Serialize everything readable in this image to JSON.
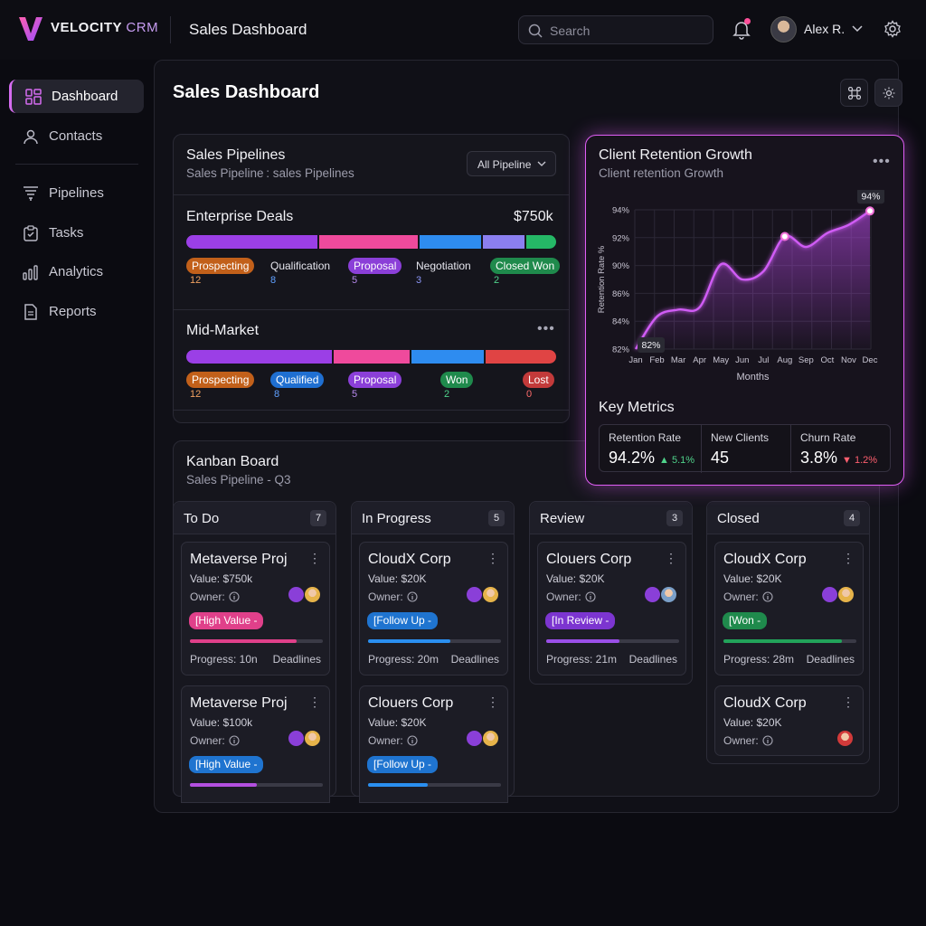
{
  "app": {
    "brand_main": "VELOCITY",
    "brand_accent": "CRM",
    "page_title": "Sales Dashboard"
  },
  "search": {
    "placeholder": "Search"
  },
  "user": {
    "name": "Alex R."
  },
  "sidebar": {
    "items": [
      {
        "label": "Dashboard",
        "icon": "dashboard-icon",
        "active": true
      },
      {
        "label": "Contacts",
        "icon": "user-icon"
      },
      {
        "label": "Pipelines",
        "icon": "funnel-icon"
      },
      {
        "label": "Tasks",
        "icon": "clipboard-icon"
      },
      {
        "label": "Analytics",
        "icon": "bar-chart-icon"
      },
      {
        "label": "Reports",
        "icon": "document-icon"
      }
    ]
  },
  "main": {
    "title": "Sales Dashboard"
  },
  "pipelines": {
    "title": "Sales Pipelines",
    "subtitle": "Sales Pipeline : sales Pipelines",
    "filter": "All Pipeline",
    "enterprise": {
      "title": "Enterprise Deals",
      "amount": "$750k",
      "stages": [
        {
          "label": "Prospecting",
          "count": "12",
          "color": "#c2601a",
          "pill": true
        },
        {
          "label": "Qualification",
          "count": "8",
          "color": "#3b82f6",
          "pill": false
        },
        {
          "label": "Proposal",
          "count": "5",
          "color": "#8b3fd8",
          "pill": true
        },
        {
          "label": "Negotiation",
          "count": "3",
          "color": "#6b7cf0",
          "pill": false
        },
        {
          "label": "Closed Won",
          "count": "2",
          "color": "#1f8a4c",
          "pill": true
        }
      ]
    },
    "midmarket": {
      "title": "Mid-Market",
      "stages": [
        {
          "label": "Prospecting",
          "count": "12",
          "color": "#c2601a"
        },
        {
          "label": "Qualified",
          "count": "8",
          "color": "#1f6fd1"
        },
        {
          "label": "Proposal",
          "count": "5",
          "color": "#8b3fd8"
        },
        {
          "label": "Won",
          "count": "2",
          "color": "#1f8a4c"
        },
        {
          "label": "Lost",
          "count": "0",
          "color": "#c23a3a"
        }
      ]
    }
  },
  "retention": {
    "title": "Client Retention Growth",
    "subtitle": "Client retention Growth",
    "start_label": "82%",
    "end_label": "94%",
    "metrics_title": "Key Metrics",
    "metrics": [
      {
        "label": "Retention Rate",
        "value": "94.2%",
        "delta": "5.1%",
        "up": true
      },
      {
        "label": "New Clients",
        "value": "45",
        "delta": "",
        "up": true
      },
      {
        "label": "Churn Rate",
        "value": "3.8%",
        "delta": "1.2%",
        "up": false
      }
    ]
  },
  "chart_data": {
    "type": "line",
    "title": "Client Retention Growth",
    "subtitle": "Client retention Growth",
    "xlabel": "Months",
    "ylabel": "Retention Rate %",
    "categories": [
      "Jan",
      "Feb",
      "Mar",
      "Apr",
      "May",
      "Jun",
      "Jul",
      "Aug",
      "Sep",
      "Oct",
      "Nov",
      "Dec"
    ],
    "series": [
      {
        "values": [
          82.0,
          84.8,
          85.4,
          85.6,
          89.3,
          88.0,
          88.7,
          91.7,
          90.8,
          92.0,
          92.7,
          93.9
        ]
      }
    ],
    "yticks": [
      "82%",
      "84%",
      "86%",
      "90%",
      "92%",
      "94%"
    ],
    "ylim": [
      82,
      94
    ],
    "grid": true,
    "color": "#d05cf5"
  },
  "kanban": {
    "title": "Kanban Board",
    "subtitle": "Sales Pipeline - Q3",
    "columns": [
      {
        "title": "To Do",
        "count": "7",
        "cards": [
          {
            "title": "Metaverse Proj",
            "value": "Value: $750k",
            "owner": "Owner:",
            "tag": "[High Value -",
            "tag_color": "#e0408a",
            "progress": 0.8,
            "bar_color": "#e0408a",
            "progress_text": "Progress: 10n",
            "deadline": "Deadlines"
          },
          {
            "title": "Metaverse Proj",
            "value": "Value: $100k",
            "owner": "Owner:",
            "tag": "[High Value -",
            "tag_color": "#1f74d0",
            "progress": 0.5,
            "bar_color": "#b34fe0",
            "progress_text": "",
            "deadline": ""
          }
        ]
      },
      {
        "title": "In Progress",
        "count": "5",
        "cards": [
          {
            "title": "CloudX Corp",
            "value": "Value: $20K",
            "owner": "Owner:",
            "tag": "[Follow Up -",
            "tag_color": "#1f74d0",
            "progress": 0.62,
            "bar_color": "#2a8ff0",
            "progress_text": "Progress: 20m",
            "deadline": "Deadlines"
          },
          {
            "title": "Clouers Corp",
            "value": "Value: $20K",
            "owner": "Owner:",
            "tag": "[Follow Up -",
            "tag_color": "#1f74d0",
            "progress": 0.45,
            "bar_color": "#2a8ff0",
            "progress_text": "",
            "deadline": ""
          }
        ]
      },
      {
        "title": "Review",
        "count": "3",
        "cards": [
          {
            "title": "Clouers Corp",
            "value": "Value: $20K",
            "owner": "Owner:",
            "tag": "[In Review -",
            "tag_color": "#7c35d0",
            "progress": 0.55,
            "bar_color": "#9a4fe8",
            "progress_text": "Progress: 21m",
            "deadline": "Deadlines"
          }
        ]
      },
      {
        "title": "Closed",
        "count": "4",
        "cards": [
          {
            "title": "CloudX Corp",
            "value": "Value: $20K",
            "owner": "Owner:",
            "tag": "[Won -",
            "tag_color": "#1f8a4c",
            "progress": 0.89,
            "bar_color": "#22a35a",
            "progress_text": "Progress: 28m",
            "deadline": "Deadlines"
          },
          {
            "title": "CloudX Corp",
            "value": "Value: $20K",
            "owner": "Owner:",
            "tag": "",
            "tag_color": "",
            "progress": 0,
            "bar_color": "",
            "progress_text": "",
            "deadline": ""
          }
        ]
      }
    ]
  }
}
